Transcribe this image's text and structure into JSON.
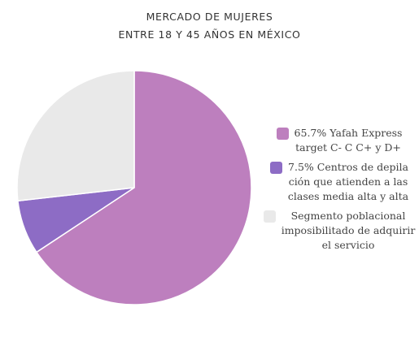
{
  "chart_data": {
    "type": "pie",
    "title": [
      "MERCADO DE MUJERES",
      "ENTRE 18 Y 45 AÑOS EN MÉXICO"
    ],
    "slices": [
      {
        "label_lines": [
          "65.7% Yafah Express",
          "target C- C C+ y D+"
        ],
        "value": 65.7,
        "color": "#bd7fbe"
      },
      {
        "label_lines": [
          "7.5% Centros de depila",
          "ción que atienden a las",
          "clases media alta y alta"
        ],
        "value": 7.5,
        "color": "#8d6cc5"
      },
      {
        "label_lines": [
          "Segmento poblacional",
          "imposibilitado de adquirir",
          "el servicio"
        ],
        "value": 26.8,
        "color": "#e9e9e9"
      }
    ],
    "start": "12 o'clock",
    "direction": "clockwise",
    "legend_position": "right"
  }
}
